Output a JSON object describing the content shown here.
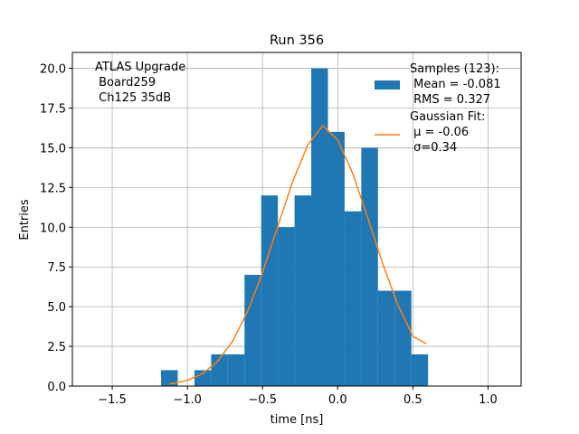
{
  "chart_data": {
    "type": "histogram",
    "title": "Run 356",
    "xlabel": "time [ns]",
    "ylabel": "Entries",
    "annotation": "ATLAS Upgrade\n Board259\n Ch125 35dB",
    "bins": [
      -1.175,
      -1.064,
      -0.953,
      -0.842,
      -0.731,
      -0.62,
      -0.509,
      -0.398,
      -0.287,
      -0.176,
      -0.065,
      0.046,
      0.157,
      0.268,
      0.379,
      0.49,
      0.601
    ],
    "series": [
      {
        "name": "Samples (123):\n Mean = -0.081\n RMS = 0.327",
        "color": "#1f77b4",
        "values": [
          1,
          0,
          1,
          2,
          2,
          7,
          12,
          10,
          12,
          20,
          16,
          11,
          15,
          6,
          6,
          2
        ]
      },
      {
        "name": "Gaussian Fit:\n μ = -0.06\n σ=0.34",
        "color": "#ff7f0e",
        "type": "line",
        "x": [
          -1.12,
          -1.0,
          -0.9,
          -0.8,
          -0.7,
          -0.6,
          -0.5,
          -0.4,
          -0.3,
          -0.2,
          -0.1,
          0.0,
          0.1,
          0.2,
          0.3,
          0.4,
          0.5,
          0.59
        ],
        "values": [
          0.13,
          0.36,
          0.78,
          1.54,
          2.81,
          4.68,
          7.14,
          10.01,
          12.86,
          15.16,
          16.39,
          15.5,
          13.38,
          10.6,
          7.69,
          5.12,
          3.13,
          2.66
        ]
      }
    ],
    "xlim": [
      -1.765,
      1.22
    ],
    "ylim": [
      0,
      21.0
    ],
    "xticks": [
      {
        "value": -1.5,
        "label": "−1.5"
      },
      {
        "value": -1.0,
        "label": "−1.0"
      },
      {
        "value": -0.5,
        "label": "−0.5"
      },
      {
        "value": 0,
        "label": "0.0"
      },
      0.5,
      {
        "value": 1.0,
        "label": "1.0"
      }
    ],
    "yticks": [
      {
        "value": 0,
        "label": "0.0"
      },
      2.5,
      {
        "value": 5,
        "label": "5.0"
      },
      7.5,
      {
        "value": 10,
        "label": "10.0"
      },
      12.5,
      {
        "value": 15,
        "label": "15.0"
      },
      17.5,
      {
        "value": 20,
        "label": "20.0"
      }
    ],
    "grid": true,
    "legend": "upper right"
  }
}
